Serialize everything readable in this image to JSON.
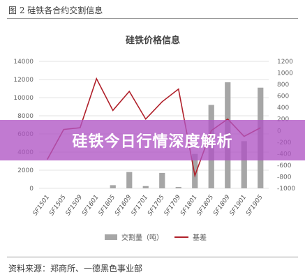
{
  "figure": {
    "caption": "图 2 硅铁各合约交割信息",
    "source": "资料来源：郑商所、一德黑色事业部"
  },
  "banner": {
    "text": "硅铁今日行情深度解析"
  },
  "chart_data": {
    "type": "bar+line",
    "title": "硅铁价格信息",
    "categories": [
      "SF1501",
      "SF1505",
      "SF1509",
      "SF1601",
      "SF1605",
      "SF1609",
      "SF1701",
      "SF1705",
      "SF1709",
      "SF1801",
      "SF1805",
      "SF1809",
      "SF1901",
      "SF1905"
    ],
    "left_axis": {
      "ylim": [
        0,
        14000
      ],
      "ticks": [
        0,
        2000,
        4000,
        6000,
        8000,
        10000,
        12000,
        14000
      ]
    },
    "right_axis": {
      "ylim": [
        -1000,
        1200
      ],
      "ticks": [
        -1000,
        -800,
        -600,
        -400,
        -200,
        0,
        200,
        400,
        600,
        800,
        1000,
        1200
      ]
    },
    "series": [
      {
        "name": "交割量（吨）",
        "kind": "bar",
        "axis": "left",
        "color": "#a6a6a6",
        "values": [
          0,
          0,
          0,
          0,
          350,
          1800,
          250,
          1700,
          150,
          3800,
          9200,
          11700,
          5200,
          11100
        ]
      },
      {
        "name": "基差",
        "kind": "line",
        "axis": "right",
        "color": "#b0202a",
        "values": [
          -500,
          20,
          50,
          900,
          350,
          680,
          200,
          500,
          720,
          -780,
          0,
          200,
          -100,
          50
        ]
      }
    ],
    "legend_position": "bottom"
  }
}
